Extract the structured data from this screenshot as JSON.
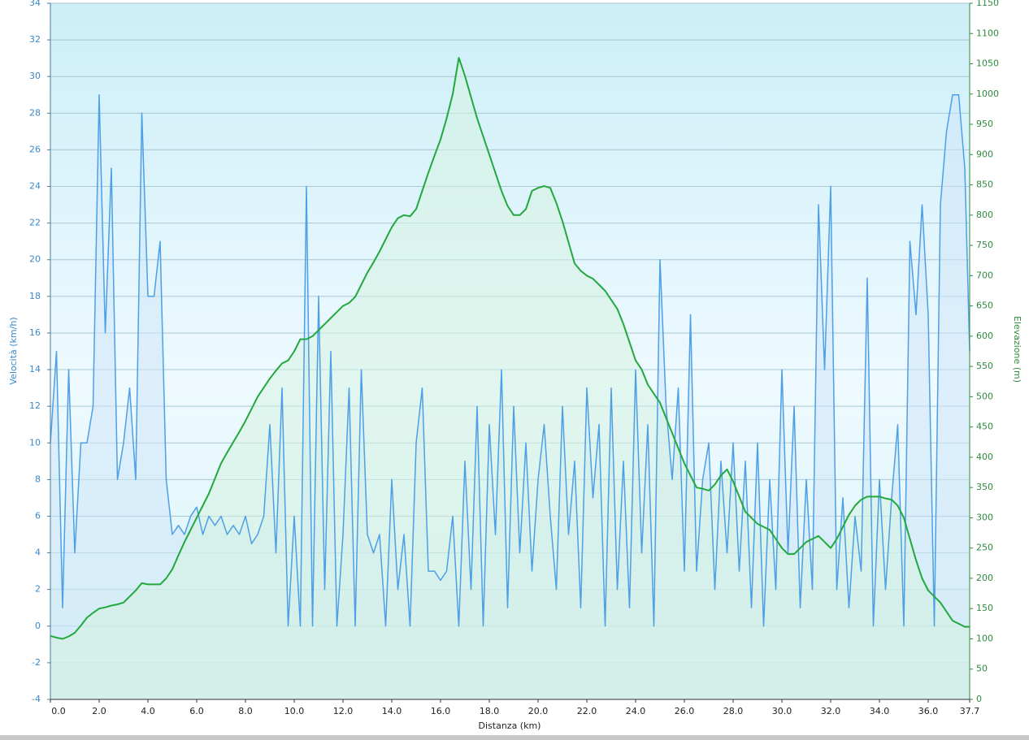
{
  "chart_data": {
    "type": "line",
    "x_label": "Distanza  (km)",
    "y_label": "Velocità (km/h)",
    "y2_label": "Elevazione (m)",
    "xlim": [
      0,
      37.7
    ],
    "ylim": [
      -4,
      34
    ],
    "y2lim": [
      0,
      1150
    ],
    "grid": true,
    "xticks": [
      {
        "value": 0,
        "label": "0.0"
      },
      {
        "value": 2,
        "label": "2.0"
      },
      {
        "value": 4,
        "label": "4.0"
      },
      {
        "value": 6,
        "label": "6.0"
      },
      {
        "value": 8,
        "label": "8.0"
      },
      {
        "value": 10,
        "label": "10.0"
      },
      {
        "value": 12,
        "label": "12.0"
      },
      {
        "value": 14,
        "label": "14.0"
      },
      {
        "value": 16,
        "label": "16.0"
      },
      {
        "value": 18,
        "label": "18.0"
      },
      {
        "value": 20,
        "label": "20.0"
      },
      {
        "value": 22,
        "label": "22.0"
      },
      {
        "value": 24,
        "label": "24.0"
      },
      {
        "value": 26,
        "label": "26.0"
      },
      {
        "value": 28,
        "label": "28.0"
      },
      {
        "value": 30,
        "label": "30.0"
      },
      {
        "value": 32,
        "label": "32.0"
      },
      {
        "value": 34,
        "label": "34.0"
      },
      {
        "value": 36,
        "label": "36.0"
      },
      37.7
    ],
    "yticks": [
      -4,
      -2,
      0,
      2,
      4,
      6,
      8,
      10,
      12,
      14,
      16,
      18,
      20,
      22,
      24,
      26,
      28,
      30,
      32,
      34
    ],
    "y2ticks": [
      0,
      50,
      100,
      150,
      200,
      250,
      300,
      350,
      400,
      450,
      500,
      550,
      600,
      650,
      700,
      750,
      800,
      850,
      900,
      950,
      1000,
      1050,
      1100,
      1150
    ],
    "x": [
      0,
      0.25,
      0.5,
      0.75,
      1,
      1.25,
      1.5,
      1.75,
      2,
      2.25,
      2.5,
      2.75,
      3,
      3.25,
      3.5,
      3.75,
      4,
      4.25,
      4.5,
      4.75,
      5,
      5.25,
      5.5,
      5.75,
      6,
      6.25,
      6.5,
      6.75,
      7,
      7.25,
      7.5,
      7.75,
      8,
      8.25,
      8.5,
      8.75,
      9,
      9.25,
      9.5,
      9.75,
      10,
      10.25,
      10.5,
      10.75,
      11,
      11.25,
      11.5,
      11.75,
      12,
      12.25,
      12.5,
      12.75,
      13,
      13.25,
      13.5,
      13.75,
      14,
      14.25,
      14.5,
      14.75,
      15,
      15.25,
      15.5,
      15.75,
      16,
      16.25,
      16.5,
      16.75,
      17,
      17.25,
      17.5,
      17.75,
      18,
      18.25,
      18.5,
      18.75,
      19,
      19.25,
      19.5,
      19.75,
      20,
      20.25,
      20.5,
      20.75,
      21,
      21.25,
      21.5,
      21.75,
      22,
      22.25,
      22.5,
      22.75,
      23,
      23.25,
      23.5,
      23.75,
      24,
      24.25,
      24.5,
      24.75,
      25,
      25.25,
      25.5,
      25.75,
      26,
      26.25,
      26.5,
      26.75,
      27,
      27.25,
      27.5,
      27.75,
      28,
      28.25,
      28.5,
      28.75,
      29,
      29.25,
      29.5,
      29.75,
      30,
      30.25,
      30.5,
      30.75,
      31,
      31.25,
      31.5,
      31.75,
      32,
      32.25,
      32.5,
      32.75,
      33,
      33.25,
      33.5,
      33.75,
      34,
      34.25,
      34.5,
      34.75,
      35,
      35.25,
      35.5,
      35.75,
      36,
      36.25,
      36.5,
      36.75,
      37,
      37.25,
      37.5,
      37.7
    ],
    "series": [
      {
        "name": "Velocità",
        "color": "#4d9fe6",
        "fill": "#cfe6fa",
        "values": [
          10,
          15,
          1,
          14,
          4,
          10,
          10,
          12,
          29,
          16,
          25,
          8,
          10,
          13,
          8,
          28,
          18,
          18,
          21,
          8,
          5,
          5.5,
          5,
          6,
          6.5,
          5,
          6,
          5.5,
          6,
          5,
          5.5,
          5,
          6,
          4.5,
          5,
          6,
          11,
          4,
          13,
          0,
          6,
          0,
          24,
          0,
          18,
          2,
          15,
          0,
          5,
          13,
          0,
          14,
          5,
          4,
          5,
          0,
          8,
          2,
          5,
          0,
          10,
          13,
          3,
          3,
          2.5,
          3,
          6,
          0,
          9,
          2,
          12,
          0,
          11,
          5,
          14,
          1,
          12,
          4,
          10,
          3,
          8,
          11,
          6,
          2,
          12,
          5,
          9,
          1,
          13,
          7,
          11,
          0,
          13,
          2,
          9,
          1,
          14,
          4,
          11,
          0,
          20,
          12,
          8,
          13,
          3,
          17,
          3,
          8,
          10,
          2,
          9,
          4,
          10,
          3,
          9,
          1,
          10,
          0,
          8,
          2,
          14,
          4,
          12,
          1,
          8,
          2,
          23,
          14,
          24,
          2,
          7,
          1,
          6,
          3,
          19,
          0,
          8,
          2,
          7,
          11,
          0,
          21,
          17,
          23,
          17,
          0,
          23,
          27,
          29,
          29,
          25,
          15
        ]
      },
      {
        "name": "Elevazione",
        "color": "#22a83e",
        "fill": "#d6f3e0",
        "axis": "y2",
        "values": [
          105,
          102,
          100,
          104,
          110,
          122,
          135,
          143,
          150,
          152,
          155,
          157,
          160,
          170,
          180,
          192,
          190,
          190,
          190,
          200,
          215,
          238,
          260,
          280,
          300,
          320,
          340,
          365,
          390,
          408,
          425,
          442,
          460,
          480,
          500,
          515,
          530,
          543,
          555,
          560,
          575,
          595,
          595,
          600,
          610,
          620,
          630,
          640,
          650,
          655,
          665,
          685,
          705,
          722,
          740,
          760,
          780,
          795,
          800,
          798,
          810,
          840,
          870,
          898,
          925,
          960,
          1000,
          1060,
          1030,
          995,
          960,
          930,
          900,
          870,
          840,
          815,
          800,
          800,
          810,
          840,
          845,
          848,
          845,
          820,
          790,
          755,
          720,
          708,
          700,
          695,
          685,
          675,
          660,
          645,
          620,
          590,
          560,
          545,
          520,
          505,
          490,
          465,
          440,
          415,
          390,
          370,
          350,
          348,
          345,
          355,
          370,
          380,
          360,
          335,
          310,
          300,
          290,
          285,
          280,
          265,
          250,
          240,
          240,
          250,
          260,
          265,
          270,
          260,
          250,
          265,
          285,
          305,
          320,
          330,
          335,
          335,
          335,
          332,
          330,
          320,
          300,
          265,
          230,
          200,
          180,
          170,
          160,
          145,
          130,
          125,
          120,
          120
        ]
      }
    ]
  }
}
